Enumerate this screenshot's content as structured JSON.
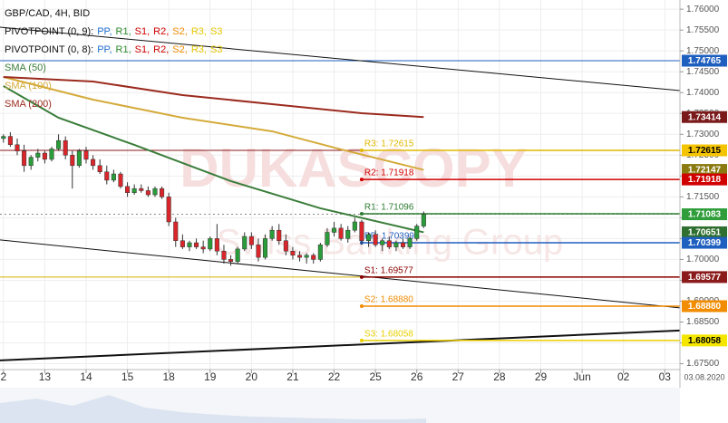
{
  "chart_data": {
    "type": "candlestick",
    "title": "GBP/CAD, 4H, BID",
    "pivot_legends": [
      {
        "prefix": "PIVOTPOINT (0, 9):",
        "items": [
          "PP,",
          "R1,",
          "S1,",
          "R2,",
          "S2,",
          "R3,",
          "S3"
        ]
      },
      {
        "prefix": "PIVOTPOINT (0, 8):",
        "items": [
          "PP,",
          "R1,",
          "S1,",
          "R2,",
          "S2,",
          "R3,",
          "S3"
        ]
      }
    ],
    "pivot_legend_colors": [
      "#1f6fd0",
      "#2e8b2e",
      "#d00000",
      "#d00000",
      "#f08c00",
      "#e6c800",
      "#e6c800"
    ],
    "xlim": [
      -0.5,
      98.2
    ],
    "ylim": [
      1.6736,
      1.7622
    ],
    "grid": true,
    "xticks": [
      {
        "value": 0,
        "label": "2"
      },
      {
        "value": 6,
        "label": "13"
      },
      {
        "value": 12,
        "label": "14"
      },
      {
        "value": 18,
        "label": "15"
      },
      {
        "value": 24,
        "label": "18"
      },
      {
        "value": 30,
        "label": "19"
      },
      {
        "value": 36,
        "label": "20"
      },
      {
        "value": 42,
        "label": "21"
      },
      {
        "value": 48,
        "label": "22"
      },
      {
        "value": 54,
        "label": "25"
      },
      {
        "value": 60,
        "label": "26"
      },
      {
        "value": 66,
        "label": "27"
      },
      {
        "value": 72,
        "label": "28"
      },
      {
        "value": 78,
        "label": "29"
      },
      {
        "value": 84,
        "label": "Jun"
      },
      {
        "value": 90,
        "label": "02"
      },
      {
        "value": 96,
        "label": "03"
      }
    ],
    "yticks": [
      {
        "value": 1.76,
        "label": "1.76000"
      },
      {
        "value": 1.755,
        "label": "1.75500"
      },
      {
        "value": 1.75,
        "label": "1.75000"
      },
      {
        "value": 1.745,
        "label": "1.74500"
      },
      {
        "value": 1.74,
        "label": "1.74000"
      },
      {
        "value": 1.735,
        "label": "1.73500"
      },
      {
        "value": 1.73,
        "label": "1.73000"
      },
      {
        "value": 1.725,
        "label": "1.72500"
      },
      {
        "value": 1.72,
        "label": "1.72000"
      },
      {
        "value": 1.715,
        "label": "1.71500"
      },
      {
        "value": 1.71,
        "label": "1.71000"
      },
      {
        "value": 1.705,
        "label": "1.70500"
      },
      {
        "value": 1.7,
        "label": "1.70000"
      },
      {
        "value": 1.695,
        "label": "1.69500"
      },
      {
        "value": 1.69,
        "label": "1.69000"
      },
      {
        "value": 1.685,
        "label": "1.68500"
      },
      {
        "value": 1.68,
        "label": "1.68000"
      },
      {
        "value": 1.675,
        "label": "1.67500"
      }
    ],
    "date_label": "03.08.2020",
    "watermark": [
      "DUKASCOPY",
      "Swiss Banking Group"
    ],
    "up_color": "#2a9d3a",
    "down_color": "#d9262b",
    "ohlc": [
      [
        1.729,
        1.73,
        1.728,
        1.7295
      ],
      [
        1.7295,
        1.7305,
        1.727,
        1.7275
      ],
      [
        1.7275,
        1.729,
        1.725,
        1.726
      ],
      [
        1.726,
        1.7275,
        1.721,
        1.7225
      ],
      [
        1.7225,
        1.725,
        1.7215,
        1.7245
      ],
      [
        1.7245,
        1.7265,
        1.7235,
        1.7255
      ],
      [
        1.7255,
        1.726,
        1.723,
        1.724
      ],
      [
        1.724,
        1.727,
        1.7235,
        1.7265
      ],
      [
        1.7265,
        1.73,
        1.726,
        1.7285
      ],
      [
        1.7285,
        1.7295,
        1.724,
        1.725
      ],
      [
        1.725,
        1.726,
        1.717,
        1.7225
      ],
      [
        1.7225,
        1.7265,
        1.722,
        1.726
      ],
      [
        1.726,
        1.727,
        1.723,
        1.724
      ],
      [
        1.724,
        1.725,
        1.7215,
        1.7225
      ],
      [
        1.7225,
        1.724,
        1.7205,
        1.721
      ],
      [
        1.721,
        1.7225,
        1.718,
        1.719
      ],
      [
        1.719,
        1.7215,
        1.7185,
        1.7205
      ],
      [
        1.7205,
        1.721,
        1.717,
        1.7175
      ],
      [
        1.7175,
        1.7185,
        1.715,
        1.716
      ],
      [
        1.716,
        1.718,
        1.7155,
        1.717
      ],
      [
        1.717,
        1.718,
        1.716,
        1.7165
      ],
      [
        1.7165,
        1.7175,
        1.715,
        1.7155
      ],
      [
        1.7155,
        1.7175,
        1.715,
        1.717
      ],
      [
        1.717,
        1.7175,
        1.7145,
        1.715
      ],
      [
        1.715,
        1.716,
        1.708,
        1.709
      ],
      [
        1.709,
        1.71,
        1.703,
        1.7045
      ],
      [
        1.7045,
        1.706,
        1.7025,
        1.703
      ],
      [
        1.703,
        1.7045,
        1.702,
        1.704
      ],
      [
        1.704,
        1.705,
        1.7025,
        1.703
      ],
      [
        1.703,
        1.7045,
        1.7015,
        1.7025
      ],
      [
        1.7025,
        1.7055,
        1.702,
        1.705
      ],
      [
        1.705,
        1.7085,
        1.701,
        1.702
      ],
      [
        1.702,
        1.7035,
        1.699,
        1.7
      ],
      [
        1.7,
        1.701,
        1.6985,
        1.6995
      ],
      [
        1.6995,
        1.703,
        1.699,
        1.7025
      ],
      [
        1.7025,
        1.7065,
        1.702,
        1.7055
      ],
      [
        1.7055,
        1.7065,
        1.7025,
        1.7035
      ],
      [
        1.7035,
        1.705,
        1.6995,
        1.7005
      ],
      [
        1.7005,
        1.706,
        1.7,
        1.705
      ],
      [
        1.705,
        1.708,
        1.7045,
        1.707
      ],
      [
        1.707,
        1.7085,
        1.7035,
        1.7045
      ],
      [
        1.7045,
        1.706,
        1.701,
        1.702
      ],
      [
        1.702,
        1.703,
        1.7,
        1.701
      ],
      [
        1.701,
        1.702,
        1.6995,
        1.7005
      ],
      [
        1.7005,
        1.7015,
        1.699,
        1.701
      ],
      [
        1.701,
        1.7015,
        1.699,
        1.7
      ],
      [
        1.7,
        1.704,
        1.6995,
        1.7035
      ],
      [
        1.7035,
        1.7075,
        1.703,
        1.7065
      ],
      [
        1.7065,
        1.709,
        1.7055,
        1.7075
      ],
      [
        1.7075,
        1.7085,
        1.7045,
        1.705
      ],
      [
        1.705,
        1.708,
        1.704,
        1.707
      ],
      [
        1.707,
        1.71,
        1.7065,
        1.709
      ],
      [
        1.709,
        1.7095,
        1.7035,
        1.7045
      ],
      [
        1.7045,
        1.7065,
        1.703,
        1.706
      ],
      [
        1.706,
        1.707,
        1.703,
        1.7035
      ],
      [
        1.7035,
        1.705,
        1.702,
        1.7045
      ],
      [
        1.7045,
        1.7055,
        1.7025,
        1.703
      ],
      [
        1.703,
        1.7045,
        1.702,
        1.704
      ],
      [
        1.704,
        1.705,
        1.7025,
        1.703
      ],
      [
        1.703,
        1.7055,
        1.7025,
        1.705
      ],
      [
        1.705,
        1.7085,
        1.7045,
        1.708
      ],
      [
        1.708,
        1.7115,
        1.7075,
        1.7108
      ]
    ],
    "series": [
      {
        "name": "SMA (50)",
        "color": "#3a7d3a",
        "x": [
          0,
          8,
          19,
          33,
          46,
          61
        ],
        "values": [
          1.74157,
          1.73397,
          1.72746,
          1.71878,
          1.71227,
          1.70651
        ]
      },
      {
        "name": "SMA (100)",
        "color": "#d4aa3a",
        "x": [
          0,
          13,
          26,
          39,
          49,
          61
        ],
        "values": [
          1.74374,
          1.73832,
          1.73397,
          1.73072,
          1.72638,
          1.72147
        ]
      },
      {
        "name": "SMA (200)",
        "color": "#9b2a1e",
        "x": [
          0,
          13,
          26,
          39,
          52,
          61
        ],
        "values": [
          1.74374,
          1.74266,
          1.7394,
          1.73723,
          1.73506,
          1.73414
        ]
      }
    ],
    "hlines": [
      {
        "value": 1.74765,
        "color": "#1f5fbf",
        "dashed": false
      },
      {
        "value": 1.72615,
        "color": "#8b1a1a",
        "dashed": false
      },
      {
        "value": 1.69577,
        "color": "#d4b000",
        "dashed": false
      },
      {
        "value": 1.71083,
        "color": "#888888",
        "dashed": true
      }
    ],
    "trendlines": [
      {
        "x": [
          -0.5,
          98.2
        ],
        "values": [
          1.75568,
          1.74049
        ],
        "width": 1
      },
      {
        "x": [
          -0.5,
          98.2
        ],
        "values": [
          1.70467,
          1.68839
        ],
        "width": 1
      },
      {
        "x": [
          -0.5,
          98.2
        ],
        "values": [
          1.6758,
          1.68297
        ],
        "width": 2
      }
    ],
    "pivots": [
      {
        "from": 52,
        "value": 1.72615,
        "label": "R3: 1.72615",
        "color": "#e0b800"
      },
      {
        "from": 52,
        "value": 1.71918,
        "label": "R2: 1.71918",
        "color": "#d00000"
      },
      {
        "from": 52,
        "value": 1.71096,
        "label": "R1: 1.71096",
        "color": "#2e7d32"
      },
      {
        "from": 52,
        "value": 1.70399,
        "label": "PP: 1.70399",
        "color": "#1f5fbf"
      },
      {
        "from": 52,
        "value": 1.69577,
        "label": "S1: 1.69577",
        "color": "#8b0000"
      },
      {
        "from": 52,
        "value": 1.6888,
        "label": "S2: 1.68880",
        "color": "#f08c00"
      },
      {
        "from": 52,
        "value": 1.68058,
        "label": "S3: 1.68058",
        "color": "#e8d000"
      }
    ],
    "price_labels": [
      {
        "value": 1.74765,
        "label": "1.74765",
        "color": "#1f5fbf",
        "text_color": "#ffffff"
      },
      {
        "value": 1.73414,
        "label": "1.73414",
        "color": "#7a1a1a",
        "text_color": "#ffffff"
      },
      {
        "value": 1.72615,
        "label": "1.72615",
        "color": "#f5c400",
        "text_color": "#000000"
      },
      {
        "value": 1.72147,
        "label": "1.72147",
        "color": "#8a7a10",
        "text_color": "#ffffff"
      },
      {
        "value": 1.71918,
        "label": "1.71918",
        "color": "#d00000",
        "text_color": "#ffffff"
      },
      {
        "value": 1.71083,
        "label": "1.71083",
        "color": "#2e9d3a",
        "text_color": "#ffffff"
      },
      {
        "value": 1.70651,
        "label": "1.70651",
        "color": "#2f6f2f",
        "text_color": "#ffffff"
      },
      {
        "value": 1.70399,
        "label": "1.70399",
        "color": "#1f5fbf",
        "text_color": "#ffffff"
      },
      {
        "value": 1.69577,
        "label": "1.69577",
        "color": "#8b1a1a",
        "text_color": "#ffffff"
      },
      {
        "value": 1.6888,
        "label": "1.68880",
        "color": "#f28c00",
        "text_color": "#ffffff"
      },
      {
        "value": 1.68058,
        "label": "1.68058",
        "color": "#f5e600",
        "text_color": "#000000"
      }
    ]
  }
}
